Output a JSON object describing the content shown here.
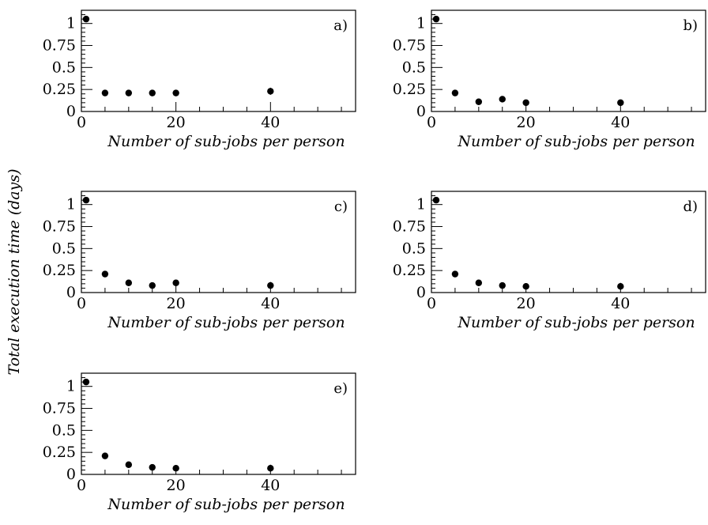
{
  "chart_data": {
    "type": "scatter",
    "ylabel": "Total execution time (days)",
    "panels": [
      {
        "label": "a)",
        "xlabel": "Number of sub-jobs per person",
        "xlim": [
          0,
          58
        ],
        "ylim": [
          0,
          1.15
        ],
        "xticks": [
          "0",
          "20",
          "40"
        ],
        "yticks": [
          "0",
          "0.25",
          "0.5",
          "0.75",
          "1"
        ],
        "points": [
          {
            "x": 1,
            "y": 1.05,
            "err": 0.02
          },
          {
            "x": 5,
            "y": 0.21,
            "err": 0.01
          },
          {
            "x": 10,
            "y": 0.21,
            "err": 0.01
          },
          {
            "x": 15,
            "y": 0.21,
            "err": 0.01
          },
          {
            "x": 20,
            "y": 0.21,
            "err": 0.01
          },
          {
            "x": 40,
            "y": 0.23,
            "err": 0.04
          }
        ]
      },
      {
        "label": "b)",
        "xlabel": "Number of sub-jobs per person",
        "xlim": [
          0,
          58
        ],
        "ylim": [
          0,
          1.15
        ],
        "xticks": [
          "0",
          "20",
          "40"
        ],
        "yticks": [
          "0",
          "0.25",
          "0.5",
          "0.75",
          "1"
        ],
        "points": [
          {
            "x": 1,
            "y": 1.05,
            "err": 0.02
          },
          {
            "x": 5,
            "y": 0.21,
            "err": 0.01
          },
          {
            "x": 10,
            "y": 0.11,
            "err": 0.01
          },
          {
            "x": 15,
            "y": 0.14,
            "err": 0.02
          },
          {
            "x": 20,
            "y": 0.1,
            "err": 0.01
          },
          {
            "x": 40,
            "y": 0.1,
            "err": 0.02
          }
        ]
      },
      {
        "label": "c)",
        "xlabel": "Number of sub-jobs per person",
        "xlim": [
          0,
          58
        ],
        "ylim": [
          0,
          1.15
        ],
        "xticks": [
          "0",
          "20",
          "40"
        ],
        "yticks": [
          "0",
          "0.25",
          "0.5",
          "0.75",
          "1"
        ],
        "points": [
          {
            "x": 1,
            "y": 1.05,
            "err": 0.02
          },
          {
            "x": 5,
            "y": 0.21,
            "err": 0.01
          },
          {
            "x": 10,
            "y": 0.11,
            "err": 0.02
          },
          {
            "x": 15,
            "y": 0.08,
            "err": 0.02
          },
          {
            "x": 20,
            "y": 0.11,
            "err": 0.02
          },
          {
            "x": 40,
            "y": 0.08,
            "err": 0.04
          }
        ]
      },
      {
        "label": "d)",
        "xlabel": "Number of sub-jobs per person",
        "xlim": [
          0,
          58
        ],
        "ylim": [
          0,
          1.15
        ],
        "xticks": [
          "0",
          "20",
          "40"
        ],
        "yticks": [
          "0",
          "0.25",
          "0.5",
          "0.75",
          "1"
        ],
        "points": [
          {
            "x": 1,
            "y": 1.05,
            "err": 0.02
          },
          {
            "x": 5,
            "y": 0.21,
            "err": 0.01
          },
          {
            "x": 10,
            "y": 0.11,
            "err": 0.01
          },
          {
            "x": 15,
            "y": 0.08,
            "err": 0.01
          },
          {
            "x": 20,
            "y": 0.07,
            "err": 0.02
          },
          {
            "x": 40,
            "y": 0.07,
            "err": 0.04
          }
        ]
      },
      {
        "label": "e)",
        "xlabel": "Number of sub-jobs per person",
        "xlim": [
          0,
          58
        ],
        "ylim": [
          0,
          1.15
        ],
        "xticks": [
          "0",
          "20",
          "40"
        ],
        "yticks": [
          "0",
          "0.25",
          "0.5",
          "0.75",
          "1"
        ],
        "points": [
          {
            "x": 1,
            "y": 1.05,
            "err": 0.02
          },
          {
            "x": 5,
            "y": 0.21,
            "err": 0.01
          },
          {
            "x": 10,
            "y": 0.11,
            "err": 0.01
          },
          {
            "x": 15,
            "y": 0.08,
            "err": 0.01
          },
          {
            "x": 20,
            "y": 0.07,
            "err": 0.02
          },
          {
            "x": 40,
            "y": 0.07,
            "err": 0.04
          }
        ]
      }
    ]
  }
}
